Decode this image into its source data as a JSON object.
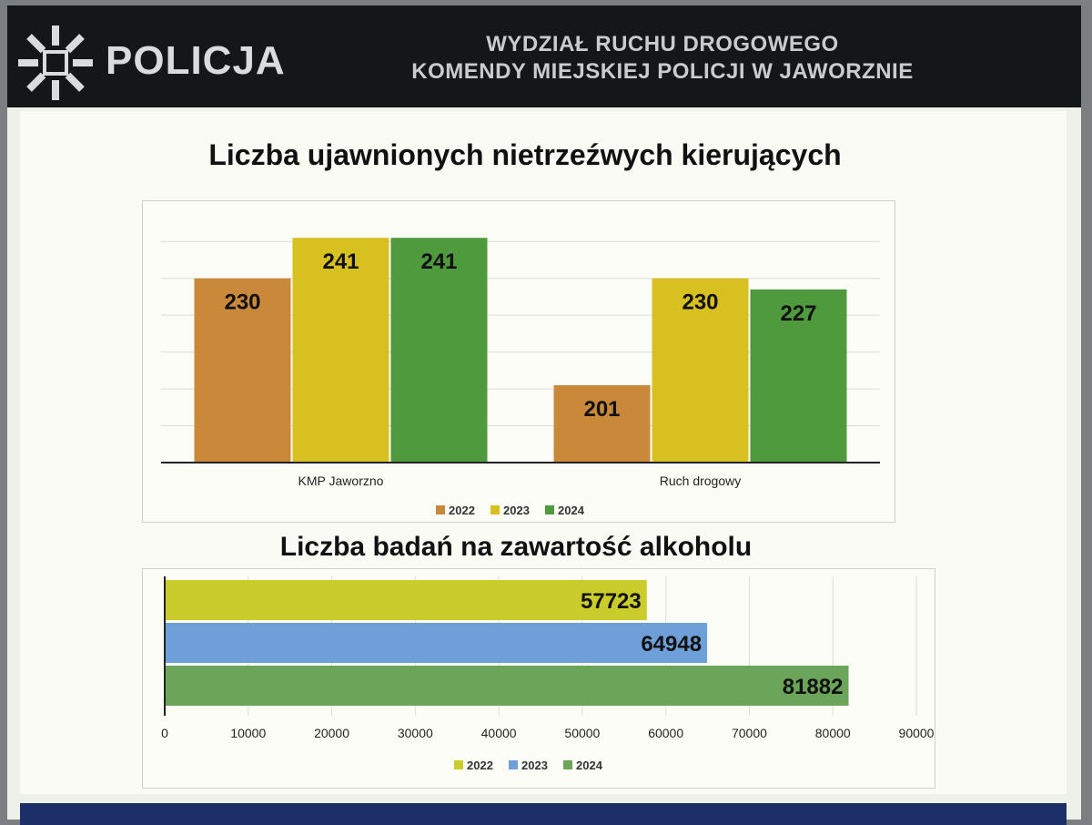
{
  "header": {
    "logo_text": "POLICJA",
    "title_line1": "WYDZIAŁ RUCHU DROGOWEGO",
    "title_line2": "KOMENDY MIEJSKIEJ POLICJI W JAWORZNIE"
  },
  "chart_data": [
    {
      "type": "bar",
      "title": "Liczba ujawnionych nietrzeźwych kierujących",
      "categories": [
        "KMP Jaworzno",
        "Ruch drogowy"
      ],
      "series": [
        {
          "name": "2022",
          "values": [
            230,
            201
          ],
          "color": "#c9883a"
        },
        {
          "name": "2023",
          "values": [
            241,
            230
          ],
          "color": "#d8c020"
        },
        {
          "name": "2024",
          "values": [
            241,
            227
          ],
          "color": "#4e9a3c"
        }
      ],
      "ylim": [
        180,
        245
      ],
      "grid": true,
      "legend": "bottom"
    },
    {
      "type": "bar",
      "orientation": "horizontal",
      "title": "Liczba badań na zawartość alkoholu",
      "series": [
        {
          "name": "2022",
          "values": [
            57723
          ],
          "color": "#c9cc2a"
        },
        {
          "name": "2023",
          "values": [
            64948
          ],
          "color": "#6f9fd8"
        },
        {
          "name": "2024",
          "values": [
            81882
          ],
          "color": "#6aa55a"
        }
      ],
      "xlim": [
        0,
        90000
      ],
      "xticks": [
        0,
        10000,
        20000,
        30000,
        40000,
        50000,
        60000,
        70000,
        80000,
        90000
      ],
      "grid": true,
      "legend": "bottom"
    }
  ]
}
